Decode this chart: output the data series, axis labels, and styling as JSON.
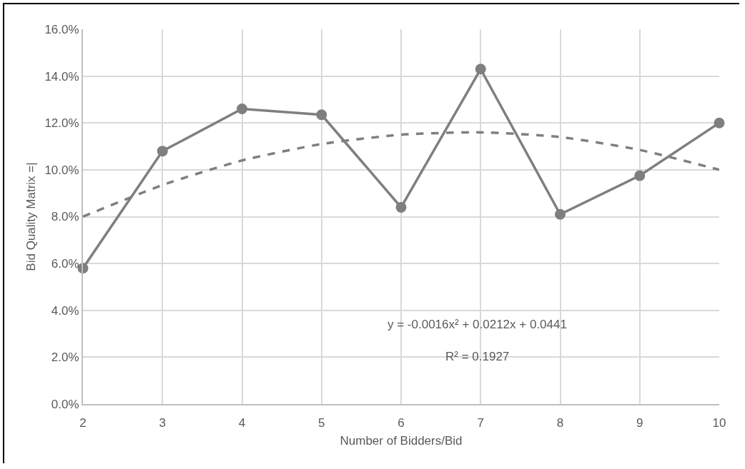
{
  "chart_data": {
    "type": "line",
    "xlabel": "Number of Bidders/Bid",
    "ylabel": "Bid Quality Matrix =|",
    "x": [
      2,
      3,
      4,
      5,
      6,
      7,
      8,
      9,
      10
    ],
    "series": [
      {
        "color": "#7f7f7f",
        "values": [
          5.8,
          10.8,
          12.6,
          12.35,
          8.4,
          14.3,
          8.1,
          9.75,
          12.0
        ],
        "marker": "circle",
        "line_style": "solid"
      },
      {
        "color": "#7f7f7f",
        "values": [
          8.0,
          9.35,
          10.4,
          11.1,
          11.5,
          11.6,
          11.4,
          10.85,
          10.0
        ],
        "marker": "none",
        "line_style": "dashed"
      }
    ],
    "xlim": [
      2,
      10
    ],
    "xticks": [
      2,
      3,
      4,
      5,
      6,
      7,
      8,
      9,
      10
    ],
    "ylim": [
      0,
      16
    ],
    "yticks": [
      {
        "value": 0,
        "label": "0.0%"
      },
      {
        "value": 2,
        "label": "2.0%"
      },
      {
        "value": 4,
        "label": "4.0%"
      },
      {
        "value": 6,
        "label": "6.0%"
      },
      {
        "value": 8,
        "label": "8.0%"
      },
      {
        "value": 10,
        "label": "10.0%"
      },
      {
        "value": 12,
        "label": "12.0%"
      },
      {
        "value": 14,
        "label": "14.0%"
      },
      {
        "value": 16,
        "label": "16.0%"
      }
    ],
    "grid": true,
    "annotations": [
      "y = -0.0016x² + 0.0212x + 0.0441",
      "R² = 0.1927"
    ]
  }
}
